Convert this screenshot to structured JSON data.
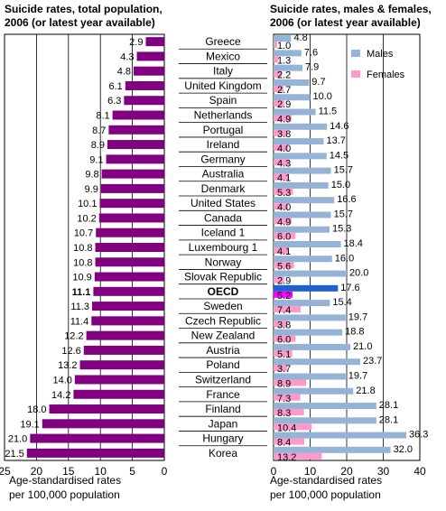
{
  "chart_data": [
    {
      "type": "bar",
      "orientation": "horizontal-left",
      "title_lines": [
        "Suicide rates, total population,",
        "2006 (or latest year available)"
      ],
      "xlabel_lines": [
        "Age-standardised rates",
        "per 100,000 population"
      ],
      "xlim": [
        0,
        25
      ],
      "xticks": [
        25,
        20,
        15,
        10,
        5,
        0
      ],
      "grid": true,
      "categories": [
        "Greece",
        "Mexico",
        "Italy",
        "United Kingdom",
        "Spain",
        "Netherlands",
        "Portugal",
        "Ireland",
        "Germany",
        "Australia",
        "Denmark",
        "United States",
        "Canada",
        "Iceland 1",
        "Luxembourg 1",
        "Norway",
        "Slovak Republic",
        "OECD",
        "Sweden",
        "Czech Republic",
        "New Zealand",
        "Austria",
        "Poland",
        "Switzerland",
        "France",
        "Finland",
        "Japan",
        "Hungary",
        "Korea"
      ],
      "highlight_category": "OECD",
      "series": [
        {
          "values": [
            2.9,
            4.3,
            4.8,
            6.1,
            6.3,
            8.1,
            8.7,
            8.9,
            9.1,
            9.8,
            9.9,
            10.1,
            10.2,
            10.7,
            10.8,
            10.8,
            10.9,
            11.1,
            11.3,
            11.4,
            12.2,
            12.6,
            13.2,
            14.0,
            14.2,
            18.0,
            19.1,
            21.0,
            21.5
          ],
          "color": "#800080"
        }
      ],
      "value_labels": [
        "2.9",
        "4.3",
        "4.8",
        "6.1",
        "6.3",
        "8.1",
        "8.7",
        "8.9",
        "9.1",
        "9.8",
        "9.9",
        "10.1",
        "10.2",
        "10.7",
        "10.8",
        "10.8",
        "10.9",
        "11.1",
        "11.3",
        "11.4",
        "12.2",
        "12.6",
        "13.2",
        "14.0",
        "14.2",
        "18.0",
        "19.1",
        "21.0",
        "21.5"
      ]
    },
    {
      "type": "bar",
      "orientation": "horizontal",
      "title_lines": [
        "Suicide rates, males & females,",
        "2006 (or latest year available)"
      ],
      "xlabel_lines": [
        "Age-standardised rates",
        "per 100,000 population"
      ],
      "xlim": [
        0,
        40
      ],
      "xticks": [
        0,
        10,
        20,
        30,
        40
      ],
      "grid": true,
      "legend": "top-right",
      "categories": [
        "Greece",
        "Mexico",
        "Italy",
        "United Kingdom",
        "Spain",
        "Netherlands",
        "Portugal",
        "Ireland",
        "Germany",
        "Australia",
        "Denmark",
        "United States",
        "Canada",
        "Iceland 1",
        "Luxembourg 1",
        "Norway",
        "Slovak Republic",
        "OECD",
        "Sweden",
        "Czech Republic",
        "New Zealand",
        "Austria",
        "Poland",
        "Switzerland",
        "France",
        "Finland",
        "Japan",
        "Hungary",
        "Korea"
      ],
      "series": [
        {
          "name": "Males",
          "color": "#95b3d7",
          "highlight_color": "#1f5fd0",
          "values": [
            4.8,
            7.6,
            7.9,
            9.7,
            10.0,
            11.5,
            14.6,
            13.7,
            14.5,
            15.7,
            15.0,
            16.6,
            15.7,
            15.3,
            18.4,
            16.0,
            20.0,
            17.6,
            15.4,
            19.7,
            18.8,
            21.0,
            23.7,
            19.7,
            21.8,
            28.1,
            28.1,
            36.3,
            32.0
          ],
          "labels": [
            "4.8",
            "7.6",
            "7.9",
            "9.7",
            "10.0",
            "11.5",
            "14.6",
            "13.7",
            "14.5",
            "15.7",
            "15.0",
            "16.6",
            "15.7",
            "15.3",
            "18.4",
            "16.0",
            "20.0",
            "17.6",
            "15.4",
            "19.7",
            "18.8",
            "21.0",
            "23.7",
            "19.7",
            "21.8",
            "28.1",
            "28.1",
            "36.3",
            "32.0"
          ]
        },
        {
          "name": "Females",
          "color": "#ff99cc",
          "highlight_color": "#ff00ff",
          "values": [
            1.0,
            1.3,
            2.2,
            2.7,
            2.9,
            4.9,
            3.8,
            4.0,
            4.3,
            4.1,
            5.3,
            4.0,
            4.9,
            6.0,
            4.1,
            5.6,
            2.9,
            5.2,
            7.4,
            3.8,
            6.0,
            5.1,
            3.7,
            8.9,
            7.3,
            8.3,
            10.4,
            8.4,
            13.2
          ],
          "labels": [
            "1.0",
            "1.3",
            "2.2",
            "2.7",
            "2.9",
            "4.9",
            "3.8",
            "4.0",
            "4.3",
            "4.1",
            "5.3",
            "4.0",
            "4.9",
            "6.0",
            "4.1",
            "5.6",
            "2.9",
            "5.2",
            "7.4",
            "3.8",
            "6.0",
            "5.1",
            "3.7",
            "8.9",
            "7.3",
            "8.3",
            "10.4",
            "8.4",
            "13.2"
          ]
        }
      ]
    }
  ]
}
